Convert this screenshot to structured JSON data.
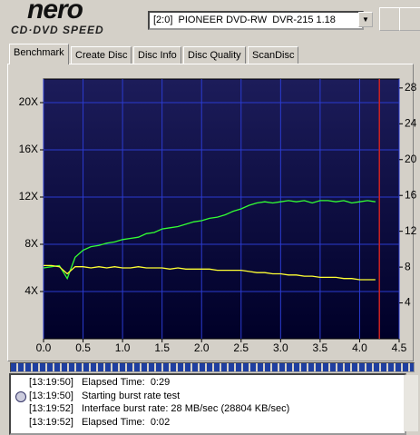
{
  "header": {
    "logo": "nero",
    "logo_sub": "CD·DVD SPEED"
  },
  "drive_select": "[2:0]  PIONEER DVD-RW  DVR-215 1.18",
  "tabs": [
    "Benchmark",
    "Create Disc",
    "Disc Info",
    "Disc Quality",
    "ScanDisc"
  ],
  "chart": {
    "type": "line",
    "x": [
      0,
      0.1,
      0.2,
      0.3,
      0.4,
      0.5,
      0.6,
      0.7,
      0.8,
      0.9,
      1.0,
      1.1,
      1.2,
      1.3,
      1.4,
      1.5,
      1.6,
      1.7,
      1.8,
      1.9,
      2.0,
      2.1,
      2.2,
      2.3,
      2.4,
      2.5,
      2.6,
      2.7,
      2.8,
      2.9,
      3.0,
      3.1,
      3.2,
      3.3,
      3.4,
      3.5,
      3.6,
      3.7,
      3.8,
      3.9,
      4.0,
      4.1,
      4.2
    ],
    "series": [
      {
        "color": "#33ff33",
        "values": [
          6.0,
          6.1,
          6.2,
          5.1,
          6.9,
          7.5,
          7.8,
          7.9,
          8.1,
          8.2,
          8.4,
          8.5,
          8.6,
          8.9,
          9.0,
          9.3,
          9.4,
          9.5,
          9.7,
          9.9,
          10.0,
          10.2,
          10.3,
          10.5,
          10.8,
          11.0,
          11.3,
          11.5,
          11.6,
          11.5,
          11.6,
          11.7,
          11.6,
          11.7,
          11.5,
          11.7,
          11.7,
          11.6,
          11.7,
          11.5,
          11.6,
          11.7,
          11.6
        ]
      },
      {
        "color": "#ffff33",
        "values": [
          6.2,
          6.2,
          6.1,
          5.5,
          6.1,
          6.1,
          6.0,
          6.1,
          6.0,
          6.1,
          6.0,
          6.0,
          6.1,
          6.0,
          6.0,
          6.0,
          5.9,
          6.0,
          5.9,
          5.9,
          5.9,
          5.9,
          5.8,
          5.8,
          5.8,
          5.8,
          5.7,
          5.6,
          5.6,
          5.5,
          5.5,
          5.4,
          5.4,
          5.3,
          5.3,
          5.2,
          5.2,
          5.2,
          5.1,
          5.1,
          5.0,
          5.0,
          5.0
        ]
      }
    ],
    "xlim": [
      0,
      4.5
    ],
    "xticks": [
      {
        "value": 0,
        "label": "0.0"
      },
      0.5,
      {
        "value": 1,
        "label": "1.0"
      },
      1.5,
      {
        "value": 2,
        "label": "2.0"
      },
      2.5,
      {
        "value": 3,
        "label": "3.0"
      },
      3.5,
      {
        "value": 4,
        "label": "4.0"
      },
      4.5
    ],
    "ylim": [
      0,
      22
    ],
    "yticks": [
      {
        "value": 4,
        "label": "4X"
      },
      {
        "value": 8,
        "label": "8X"
      },
      {
        "value": 12,
        "label": "12X"
      },
      {
        "value": 16,
        "label": "16X"
      },
      {
        "value": 20,
        "label": "20X"
      }
    ],
    "y2lim": [
      0,
      29
    ],
    "y2ticks": [
      4,
      8,
      12,
      16,
      20,
      24,
      28
    ],
    "marker_x": 4.25,
    "marker_color": "#cc2222",
    "grid": true
  },
  "log": {
    "rows": [
      [
        "[13:19:50]",
        "Elapsed Time:  0:29"
      ],
      [
        "[13:19:50]",
        "Starting burst rate test"
      ],
      [
        "[13:19:52]",
        "Interface burst rate: 28 MB/sec (28804 KB/sec)"
      ],
      [
        "[13:19:52]",
        "Elapsed Time:  0:02"
      ]
    ]
  }
}
